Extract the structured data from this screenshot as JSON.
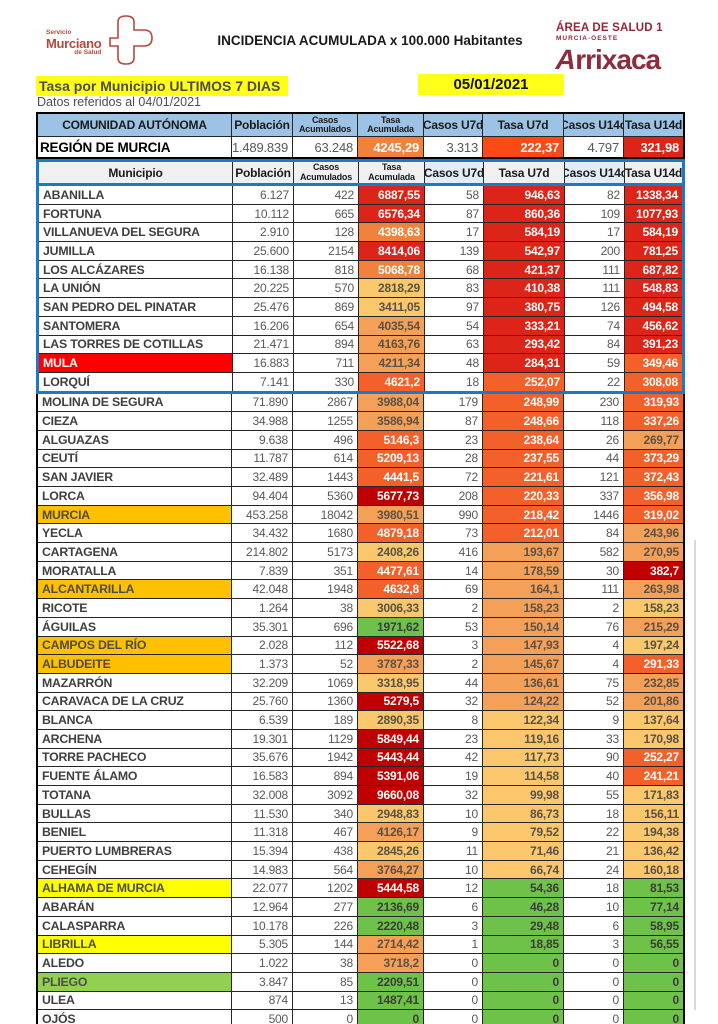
{
  "header": {
    "logo": {
      "line1": "Servicio",
      "line2": "Murciano",
      "line3": "de Salud"
    },
    "title": "INCIDENCIA ACUMULADA x 100.000 Habitantes",
    "area": {
      "line1": "ÁREA DE SALUD 1",
      "line2": "MURCIA-OESTE",
      "brand": "Arrixaca"
    }
  },
  "subheader": {
    "tasa_label": "Tasa por Municipio ULTIMOS 7 DIAS",
    "date": "05/01/2021",
    "datos_label": "Datos referidos al 04/01/2021"
  },
  "colors": {
    "header_blue": "#9cc2e5",
    "group_border_blue": "#1e78c8",
    "scale_darkred": "#c00000",
    "scale_red": "#dd2418",
    "scale_orangered": "#f4602a",
    "scale_orange": "#f0823c",
    "scale_midorange": "#f5a058",
    "scale_yellow": "#fac76d",
    "scale_green": "#6ec24a",
    "name_red": "#fe0000",
    "name_gold": "#ffc000",
    "name_yellow": "#ffff00",
    "name_green": "#92d050",
    "highlight_yellow": "#ffff1a",
    "brand_maroon": "#8e2c3e"
  },
  "table": {
    "columns": [
      "COMUNIDAD AUTÓNOMA",
      "Población",
      "Casos Acumulados",
      "Tasa Acumulada",
      "Casos U7d",
      "Tasa U7d",
      "Casos U14d",
      "Tasa U14d"
    ],
    "muni_columns": [
      "Municipio",
      "Población",
      "Casos Acumulados",
      "Tasa Acumulada",
      "Casos U7d",
      "Tasa U7d",
      "Casos U14d",
      "Tasa U14d"
    ],
    "region": {
      "name": "REGIÓN DE MURCIA",
      "poblacion": "1.489.839",
      "casos_acum": "63.248",
      "tasa_acum": "4245,29",
      "tasa_acum_color": "o4",
      "casos_u7d": "3.313",
      "tasa_u7d": "222,37",
      "tasa_u7d_color": "ro",
      "casos_u14d": "4.797",
      "tasa_u14d": "321,98",
      "tasa_u14d_color": "r"
    },
    "group1_size": 11,
    "rows": [
      [
        "ABANILLA",
        "",
        "6.127",
        "422",
        "6887,55",
        "r",
        "58",
        "946,63",
        "r",
        "82",
        "1338,34",
        "r"
      ],
      [
        "FORTUNA",
        "",
        "10.112",
        "665",
        "6576,34",
        "r",
        "87",
        "860,36",
        "r",
        "109",
        "1077,93",
        "r"
      ],
      [
        "VILLANUEVA DEL SEGURA",
        "",
        "2.910",
        "128",
        "4398,63",
        "o4",
        "17",
        "584,19",
        "r",
        "17",
        "584,19",
        "r"
      ],
      [
        "JUMILLA",
        "",
        "25.600",
        "2154",
        "8414,06",
        "r",
        "139",
        "542,97",
        "r",
        "200",
        "781,25",
        "r"
      ],
      [
        "LOS ALCÁZARES",
        "",
        "16.138",
        "818",
        "5068,78",
        "o4",
        "68",
        "421,37",
        "r",
        "111",
        "687,82",
        "r"
      ],
      [
        "LA UNIÓN",
        "",
        "20.225",
        "570",
        "2818,29",
        "y6",
        "83",
        "410,38",
        "r",
        "111",
        "548,83",
        "r"
      ],
      [
        "SAN PEDRO DEL PINATAR",
        "",
        "25.476",
        "869",
        "3411,05",
        "y6",
        "97",
        "380,75",
        "r",
        "126",
        "494,58",
        "r"
      ],
      [
        "SANTOMERA",
        "",
        "16.206",
        "654",
        "4035,54",
        "o5",
        "54",
        "333,21",
        "r",
        "74",
        "456,62",
        "r"
      ],
      [
        "LAS TORRES DE COTILLAS",
        "",
        "21.471",
        "894",
        "4163,76",
        "o5",
        "63",
        "293,42",
        "r",
        "84",
        "391,23",
        "r"
      ],
      [
        "MULA",
        "red",
        "16.883",
        "711",
        "4211,34",
        "o5",
        "48",
        "284,31",
        "r",
        "59",
        "349,46",
        "o3"
      ],
      [
        "LORQUÍ",
        "",
        "7.141",
        "330",
        "4621,2",
        "o3",
        "18",
        "252,07",
        "o3",
        "22",
        "308,08",
        "o3"
      ],
      [
        "MOLINA DE SEGURA",
        "",
        "71.890",
        "2867",
        "3988,04",
        "o5",
        "179",
        "248,99",
        "o3",
        "230",
        "319,93",
        "o3"
      ],
      [
        "CIEZA",
        "",
        "34.988",
        "1255",
        "3586,94",
        "o5",
        "87",
        "248,66",
        "o3",
        "118",
        "337,26",
        "o3"
      ],
      [
        "ALGUAZAS",
        "",
        "9.638",
        "496",
        "5146,3",
        "o3",
        "23",
        "238,64",
        "o3",
        "26",
        "269,77",
        "o5"
      ],
      [
        "CEUTÍ",
        "",
        "11.787",
        "614",
        "5209,13",
        "o3",
        "28",
        "237,55",
        "o3",
        "44",
        "373,29",
        "o3"
      ],
      [
        "SAN JAVIER",
        "",
        "32.489",
        "1443",
        "4441,5",
        "o3",
        "72",
        "221,61",
        "o3",
        "121",
        "372,43",
        "o3"
      ],
      [
        "LORCA",
        "",
        "94.404",
        "5360",
        "5677,73",
        "dr",
        "208",
        "220,33",
        "o3",
        "337",
        "356,98",
        "o3"
      ],
      [
        "MURCIA",
        "gold",
        "453.258",
        "18042",
        "3980,51",
        "o5",
        "990",
        "218,42",
        "o3",
        "1446",
        "319,02",
        "o3"
      ],
      [
        "YECLA",
        "",
        "34.432",
        "1680",
        "4879,18",
        "o3",
        "73",
        "212,01",
        "o3",
        "84",
        "243,96",
        "o5"
      ],
      [
        "CARTAGENA",
        "",
        "214.802",
        "5173",
        "2408,26",
        "y6",
        "416",
        "193,67",
        "o5",
        "582",
        "270,95",
        "o5"
      ],
      [
        "MORATALLA",
        "",
        "7.839",
        "351",
        "4477,61",
        "o3",
        "14",
        "178,59",
        "o5",
        "30",
        "382,7",
        "dr"
      ],
      [
        "ALCANTARILLA",
        "gold",
        "42.048",
        "1948",
        "4632,8",
        "o3",
        "69",
        "164,1",
        "o5",
        "111",
        "263,98",
        "o5"
      ],
      [
        "RICOTE",
        "",
        "1.264",
        "38",
        "3006,33",
        "y6",
        "2",
        "158,23",
        "o5",
        "2",
        "158,23",
        "y6"
      ],
      [
        "ÁGUILAS",
        "",
        "35.301",
        "696",
        "1971,62",
        "g",
        "53",
        "150,14",
        "o5",
        "76",
        "215,29",
        "o5"
      ],
      [
        "CAMPOS DEL RÍO",
        "gold",
        "2.028",
        "112",
        "5522,68",
        "dr",
        "3",
        "147,93",
        "o5",
        "4",
        "197,24",
        "y6"
      ],
      [
        "ALBUDEITE",
        "gold",
        "1.373",
        "52",
        "3787,33",
        "o5",
        "2",
        "145,67",
        "o5",
        "4",
        "291,33",
        "o3"
      ],
      [
        "MAZARRÓN",
        "",
        "32.209",
        "1069",
        "3318,95",
        "y6",
        "44",
        "136,61",
        "o5",
        "75",
        "232,85",
        "o5"
      ],
      [
        "CARAVACA DE LA CRUZ",
        "",
        "25.760",
        "1360",
        "5279,5",
        "dr",
        "32",
        "124,22",
        "o5",
        "52",
        "201,86",
        "o5"
      ],
      [
        "BLANCA",
        "",
        "6.539",
        "189",
        "2890,35",
        "y6",
        "8",
        "122,34",
        "y6",
        "9",
        "137,64",
        "y6"
      ],
      [
        "ARCHENA",
        "",
        "19.301",
        "1129",
        "5849,44",
        "dr",
        "23",
        "119,16",
        "y6",
        "33",
        "170,98",
        "y6"
      ],
      [
        "TORRE PACHECO",
        "",
        "35.676",
        "1942",
        "5443,44",
        "dr",
        "42",
        "117,73",
        "y6",
        "90",
        "252,27",
        "o3"
      ],
      [
        "FUENTE ÁLAMO",
        "",
        "16.583",
        "894",
        "5391,06",
        "dr",
        "19",
        "114,58",
        "y6",
        "40",
        "241,21",
        "o3"
      ],
      [
        "TOTANA",
        "",
        "32.008",
        "3092",
        "9660,08",
        "dr",
        "32",
        "99,98",
        "y6",
        "55",
        "171,83",
        "y6"
      ],
      [
        "BULLAS",
        "",
        "11.530",
        "340",
        "2948,83",
        "y6",
        "10",
        "86,73",
        "y6",
        "18",
        "156,11",
        "y6"
      ],
      [
        "BENIEL",
        "",
        "11.318",
        "467",
        "4126,17",
        "o5",
        "9",
        "79,52",
        "y6",
        "22",
        "194,38",
        "y6"
      ],
      [
        "PUERTO LUMBRERAS",
        "",
        "15.394",
        "438",
        "2845,26",
        "y6",
        "11",
        "71,46",
        "y6",
        "21",
        "136,42",
        "y6"
      ],
      [
        "CEHEGÍN",
        "",
        "14.983",
        "564",
        "3764,27",
        "o5",
        "10",
        "66,74",
        "y6",
        "24",
        "160,18",
        "y6"
      ],
      [
        "ALHAMA DE MURCIA",
        "yellow",
        "22.077",
        "1202",
        "5444,58",
        "dr",
        "12",
        "54,36",
        "g",
        "18",
        "81,53",
        "g"
      ],
      [
        "ABARÁN",
        "",
        "12.964",
        "277",
        "2136,69",
        "g",
        "6",
        "46,28",
        "g",
        "10",
        "77,14",
        "g"
      ],
      [
        "CALASPARRA",
        "",
        "10.178",
        "226",
        "2220,48",
        "g",
        "3",
        "29,48",
        "g",
        "6",
        "58,95",
        "g"
      ],
      [
        "LIBRILLA",
        "yellow",
        "5.305",
        "144",
        "2714,42",
        "o5",
        "1",
        "18,85",
        "g",
        "3",
        "56,55",
        "g"
      ],
      [
        "ALEDO",
        "",
        "1.022",
        "38",
        "3718,2",
        "o5",
        "0",
        "0",
        "g",
        "0",
        "0",
        "g"
      ],
      [
        "PLIEGO",
        "green",
        "3.847",
        "85",
        "2209,51",
        "g",
        "0",
        "0",
        "g",
        "0",
        "0",
        "g"
      ],
      [
        "ULEA",
        "",
        "874",
        "13",
        "1487,41",
        "g",
        "0",
        "0",
        "g",
        "0",
        "0",
        "g"
      ],
      [
        "OJÓS",
        "",
        "500",
        "0",
        "0",
        "g",
        "0",
        "0",
        "g",
        "0",
        "0",
        "g"
      ]
    ]
  }
}
